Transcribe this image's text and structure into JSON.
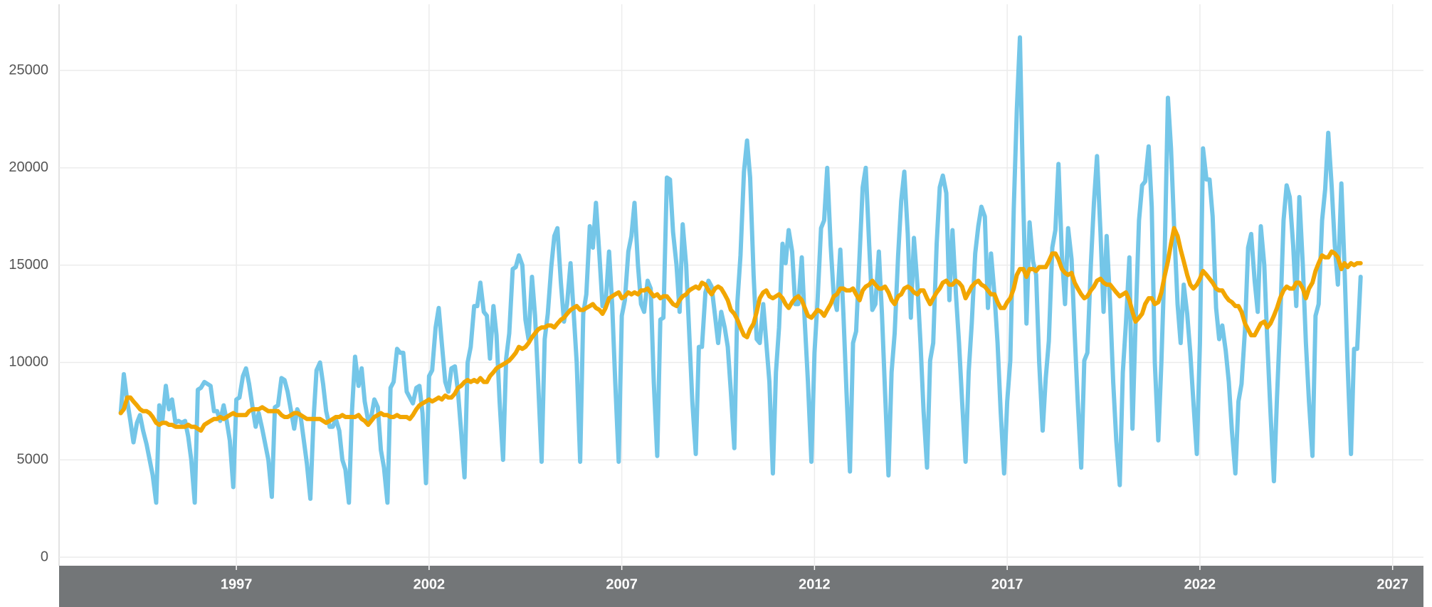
{
  "chart_data": {
    "type": "line",
    "x": [
      1994,
      1994.08,
      1994.17,
      1994.25,
      1994.33,
      1994.42,
      1994.5,
      1994.58,
      1994.67,
      1994.75,
      1994.83,
      1994.92,
      1995,
      1995.08,
      1995.17,
      1995.25,
      1995.33,
      1995.42,
      1995.5,
      1995.58,
      1995.67,
      1995.75,
      1995.83,
      1995.92,
      1996,
      1996.08,
      1996.17,
      1996.25,
      1996.33,
      1996.42,
      1996.5,
      1996.58,
      1996.67,
      1996.75,
      1996.83,
      1996.92,
      1997,
      1997.08,
      1997.17,
      1997.25,
      1997.33,
      1997.42,
      1997.5,
      1997.58,
      1997.67,
      1997.75,
      1997.83,
      1997.92,
      1998,
      1998.08,
      1998.17,
      1998.25,
      1998.33,
      1998.42,
      1998.5,
      1998.58,
      1998.67,
      1998.75,
      1998.83,
      1998.92,
      1999,
      1999.08,
      1999.17,
      1999.25,
      1999.33,
      1999.42,
      1999.5,
      1999.58,
      1999.67,
      1999.75,
      1999.83,
      1999.92,
      2000,
      2000.08,
      2000.17,
      2000.25,
      2000.33,
      2000.42,
      2000.5,
      2000.58,
      2000.67,
      2000.75,
      2000.83,
      2000.92,
      2001,
      2001.08,
      2001.17,
      2001.25,
      2001.33,
      2001.42,
      2001.5,
      2001.58,
      2001.67,
      2001.75,
      2001.83,
      2001.92,
      2002,
      2002.08,
      2002.17,
      2002.25,
      2002.33,
      2002.42,
      2002.5,
      2002.58,
      2002.67,
      2002.75,
      2002.83,
      2002.92,
      2003,
      2003.08,
      2003.17,
      2003.25,
      2003.33,
      2003.42,
      2003.5,
      2003.58,
      2003.67,
      2003.75,
      2003.83,
      2003.92,
      2004,
      2004.08,
      2004.17,
      2004.25,
      2004.33,
      2004.42,
      2004.5,
      2004.58,
      2004.67,
      2004.75,
      2004.83,
      2004.92,
      2005,
      2005.08,
      2005.17,
      2005.25,
      2005.33,
      2005.42,
      2005.5,
      2005.58,
      2005.67,
      2005.75,
      2005.83,
      2005.92,
      2006,
      2006.08,
      2006.17,
      2006.25,
      2006.33,
      2006.42,
      2006.5,
      2006.58,
      2006.67,
      2006.75,
      2006.83,
      2006.92,
      2007,
      2007.08,
      2007.17,
      2007.25,
      2007.33,
      2007.42,
      2007.5,
      2007.58,
      2007.67,
      2007.75,
      2007.83,
      2007.92,
      2008,
      2008.08,
      2008.17,
      2008.25,
      2008.33,
      2008.42,
      2008.5,
      2008.58,
      2008.67,
      2008.75,
      2008.83,
      2008.92,
      2009,
      2009.08,
      2009.17,
      2009.25,
      2009.33,
      2009.42,
      2009.5,
      2009.58,
      2009.67,
      2009.75,
      2009.83,
      2009.92,
      2010,
      2010.08,
      2010.17,
      2010.25,
      2010.33,
      2010.42,
      2010.5,
      2010.58,
      2010.67,
      2010.75,
      2010.83,
      2010.92,
      2011,
      2011.08,
      2011.17,
      2011.25,
      2011.33,
      2011.42,
      2011.5,
      2011.58,
      2011.67,
      2011.75,
      2011.83,
      2011.92,
      2012,
      2012.08,
      2012.17,
      2012.25,
      2012.33,
      2012.42,
      2012.5,
      2012.58,
      2012.67,
      2012.75,
      2012.83,
      2012.92,
      2013,
      2013.08,
      2013.17,
      2013.25,
      2013.33,
      2013.42,
      2013.5,
      2013.58,
      2013.67,
      2013.75,
      2013.83,
      2013.92,
      2014,
      2014.08,
      2014.17,
      2014.25,
      2014.33,
      2014.42,
      2014.5,
      2014.58,
      2014.67,
      2014.75,
      2014.83,
      2014.92,
      2015,
      2015.08,
      2015.17,
      2015.25,
      2015.33,
      2015.42,
      2015.5,
      2015.58,
      2015.67,
      2015.75,
      2015.83,
      2015.92,
      2016,
      2016.08,
      2016.17,
      2016.25,
      2016.33,
      2016.42,
      2016.5,
      2016.58,
      2016.67,
      2016.75,
      2016.83,
      2016.92,
      2017,
      2017.08,
      2017.17,
      2017.25,
      2017.33,
      2017.42,
      2017.5,
      2017.58,
      2017.67,
      2017.75,
      2017.83,
      2017.92,
      2018,
      2018.08,
      2018.17,
      2018.25,
      2018.33,
      2018.42,
      2018.5,
      2018.58,
      2018.67,
      2018.75,
      2018.83,
      2018.92,
      2019,
      2019.08,
      2019.17,
      2019.25,
      2019.33,
      2019.42,
      2019.5,
      2019.58,
      2019.67,
      2019.75,
      2019.83,
      2019.92,
      2020,
      2020.08,
      2020.17,
      2020.25,
      2020.33,
      2020.42,
      2020.5,
      2020.58,
      2020.67,
      2020.75,
      2020.83,
      2020.92,
      2021,
      2021.08,
      2021.17,
      2021.25,
      2021.33,
      2021.42,
      2021.5,
      2021.58,
      2021.67,
      2021.75,
      2021.83,
      2021.92,
      2022,
      2022.08,
      2022.17,
      2022.25,
      2022.33,
      2022.42,
      2022.5,
      2022.58,
      2022.67,
      2022.75,
      2022.83,
      2022.92,
      2023,
      2023.08,
      2023.17,
      2023.25,
      2023.33,
      2023.42,
      2023.5,
      2023.58,
      2023.67,
      2023.75,
      2023.83,
      2023.92,
      2024,
      2024.08,
      2024.17,
      2024.25,
      2024.33,
      2024.42,
      2024.5,
      2024.58,
      2024.67,
      2024.75,
      2024.83,
      2024.92,
      2025,
      2025.08,
      2025.17,
      2025.25,
      2025.33,
      2025.42,
      2025.5,
      2025.58,
      2025.67,
      2025.75,
      2025.83,
      2025.92,
      2026,
      2026.08,
      2026.17
    ],
    "series": [
      {
        "color": "#74c6e8",
        "values": [
          7400,
          9400,
          8000,
          7000,
          5900,
          6900,
          7300,
          6500,
          5800,
          5000,
          4200,
          2800,
          7800,
          7000,
          8800,
          7600,
          8100,
          6900,
          7000,
          6900,
          7000,
          6200,
          5000,
          2800,
          8600,
          8700,
          9000,
          8900,
          8800,
          7500,
          7500,
          7000,
          7800,
          7000,
          6000,
          3600,
          8100,
          8200,
          9300,
          9700,
          8900,
          7700,
          6700,
          7400,
          6600,
          5800,
          5000,
          3100,
          7700,
          7800,
          9200,
          9100,
          8500,
          7500,
          6600,
          7600,
          7200,
          6000,
          4800,
          3000,
          7000,
          9600,
          10000,
          8900,
          7500,
          6700,
          6700,
          7100,
          6500,
          5000,
          4500,
          2800,
          7500,
          10300,
          8800,
          9700,
          8000,
          7000,
          7200,
          8100,
          7700,
          5500,
          4600,
          2800,
          8700,
          9000,
          10700,
          10500,
          10500,
          8500,
          8200,
          7900,
          8700,
          8800,
          7400,
          3800,
          9300,
          9600,
          11800,
          12800,
          11000,
          9000,
          8500,
          9700,
          9800,
          8500,
          6500,
          4100,
          10000,
          10800,
          12900,
          12900,
          14100,
          12600,
          12400,
          10200,
          12900,
          11400,
          8000,
          5000,
          10200,
          11500,
          14800,
          14900,
          15500,
          15000,
          12200,
          11200,
          14400,
          12400,
          9000,
          4900,
          11200,
          12500,
          14900,
          16500,
          16900,
          14100,
          12100,
          13000,
          15100,
          12600,
          10000,
          4900,
          12500,
          13500,
          17000,
          15900,
          18200,
          15500,
          12900,
          13000,
          15700,
          13000,
          9000,
          4900,
          12400,
          13200,
          15700,
          16500,
          18200,
          15000,
          13000,
          12600,
          14200,
          13800,
          9000,
          5200,
          12200,
          12300,
          19500,
          19400,
          16700,
          15000,
          12600,
          17100,
          15000,
          11500,
          8000,
          5300,
          10800,
          10800,
          13600,
          14200,
          13900,
          12400,
          11000,
          12600,
          11800,
          10800,
          8500,
          5600,
          13100,
          15500,
          19800,
          21400,
          19500,
          14500,
          11200,
          11000,
          13000,
          11000,
          9000,
          4300,
          9500,
          11800,
          16100,
          15100,
          16800,
          15700,
          13000,
          13000,
          15400,
          12000,
          9000,
          4900,
          10500,
          13200,
          16900,
          17300,
          20000,
          16000,
          13400,
          12700,
          15800,
          12500,
          8500,
          4400,
          11000,
          11600,
          15500,
          19000,
          20000,
          16000,
          12700,
          13000,
          15700,
          12500,
          8500,
          4200,
          9500,
          11500,
          15500,
          18300,
          19800,
          16600,
          12300,
          16400,
          14000,
          11000,
          7500,
          4600,
          10100,
          11000,
          16100,
          19000,
          19600,
          18700,
          13200,
          16800,
          13500,
          11000,
          8000,
          4900,
          9500,
          12000,
          15600,
          17000,
          18000,
          17500,
          12800,
          15600,
          13500,
          11000,
          7500,
          4300,
          8000,
          10100,
          17900,
          23000,
          26700,
          18000,
          12000,
          17200,
          15200,
          14500,
          10000,
          6500,
          9200,
          11100,
          15900,
          16800,
          20200,
          15500,
          13000,
          16900,
          15300,
          11500,
          8000,
          4600,
          10100,
          10500,
          15000,
          18200,
          20600,
          16700,
          12600,
          16500,
          13000,
          9000,
          6000,
          3700,
          9500,
          12000,
          15400,
          6600,
          12000,
          17300,
          19100,
          19300,
          21100,
          18000,
          10000,
          6000,
          10000,
          15000,
          23600,
          21000,
          17000,
          13000,
          11000,
          14000,
          12500,
          10500,
          8000,
          5300,
          11000,
          21000,
          19400,
          19400,
          17500,
          12800,
          11200,
          11900,
          10600,
          9000,
          6500,
          4300,
          8000,
          8900,
          11700,
          15900,
          16600,
          14200,
          12600,
          17000,
          15000,
          11000,
          7500,
          3900,
          8200,
          12000,
          17300,
          19100,
          18500,
          16000,
          12900,
          18500,
          15000,
          11000,
          8000,
          5200,
          12400,
          13000,
          17300,
          18900,
          21800,
          19000,
          16000,
          14000,
          19200,
          15000,
          10000,
          5300,
          10700,
          10700,
          14400
        ]
      },
      {
        "color": "#f2a600",
        "values": [
          7400,
          7600,
          8200,
          8200,
          8000,
          7800,
          7600,
          7500,
          7500,
          7400,
          7200,
          6900,
          6800,
          6900,
          6900,
          6800,
          6800,
          6700,
          6700,
          6700,
          6700,
          6800,
          6700,
          6700,
          6600,
          6500,
          6800,
          6900,
          7000,
          7100,
          7100,
          7200,
          7100,
          7200,
          7300,
          7400,
          7300,
          7300,
          7300,
          7300,
          7500,
          7600,
          7600,
          7600,
          7700,
          7600,
          7500,
          7500,
          7500,
          7500,
          7300,
          7200,
          7200,
          7300,
          7400,
          7400,
          7300,
          7200,
          7100,
          7100,
          7100,
          7100,
          7100,
          7000,
          6900,
          7000,
          7100,
          7200,
          7200,
          7300,
          7200,
          7200,
          7200,
          7200,
          7300,
          7100,
          7000,
          6800,
          7000,
          7200,
          7300,
          7400,
          7300,
          7300,
          7200,
          7200,
          7300,
          7200,
          7200,
          7200,
          7100,
          7300,
          7600,
          7800,
          7900,
          8000,
          8100,
          8000,
          8100,
          8200,
          8100,
          8300,
          8200,
          8200,
          8400,
          8700,
          8800,
          9000,
          9100,
          9000,
          9100,
          9000,
          9200,
          9000,
          9000,
          9300,
          9500,
          9700,
          9800,
          9900,
          10000,
          10100,
          10300,
          10500,
          10800,
          10700,
          10800,
          11000,
          11300,
          11500,
          11700,
          11800,
          11800,
          11900,
          11900,
          11800,
          12000,
          12200,
          12300,
          12500,
          12700,
          12800,
          12900,
          12700,
          12700,
          12800,
          12900,
          13000,
          12800,
          12700,
          12500,
          12800,
          13300,
          13400,
          13500,
          13600,
          13300,
          13400,
          13600,
          13500,
          13600,
          13500,
          13700,
          13700,
          13800,
          13600,
          13400,
          13500,
          13300,
          13400,
          13400,
          13200,
          13000,
          12900,
          13200,
          13400,
          13500,
          13700,
          13800,
          13900,
          13800,
          14100,
          14000,
          13700,
          13500,
          13800,
          13900,
          13800,
          13500,
          13200,
          12700,
          12500,
          12200,
          11800,
          11400,
          11300,
          11700,
          12000,
          12600,
          13300,
          13600,
          13700,
          13400,
          13300,
          13400,
          13500,
          13300,
          13000,
          12800,
          13100,
          13300,
          13400,
          13200,
          12800,
          12400,
          12300,
          12500,
          12700,
          12600,
          12400,
          12700,
          13000,
          13400,
          13500,
          13800,
          13800,
          13700,
          13700,
          13800,
          13500,
          13200,
          13700,
          13900,
          14000,
          14200,
          14000,
          13800,
          13800,
          13900,
          13600,
          13200,
          13000,
          13400,
          13500,
          13800,
          13900,
          13800,
          13600,
          13500,
          13700,
          13700,
          13300,
          13000,
          13300,
          13600,
          13800,
          14100,
          14200,
          14000,
          14000,
          14200,
          14100,
          13900,
          13300,
          13600,
          13900,
          14100,
          14200,
          14000,
          13900,
          13700,
          13500,
          13500,
          13100,
          12800,
          12800,
          13100,
          13300,
          13800,
          14500,
          14800,
          14800,
          14400,
          14800,
          14800,
          14700,
          14900,
          14900,
          14900,
          15200,
          15600,
          15600,
          15300,
          14800,
          14600,
          14500,
          14600,
          14100,
          13800,
          13500,
          13300,
          13400,
          13700,
          13900,
          14200,
          14300,
          14100,
          14000,
          14000,
          13800,
          13600,
          13400,
          13500,
          13600,
          13200,
          12600,
          12100,
          12300,
          12500,
          13000,
          13300,
          13300,
          13000,
          13100,
          13600,
          14400,
          15200,
          16100,
          16900,
          16500,
          15800,
          15200,
          14500,
          14000,
          13800,
          14000,
          14300,
          14700,
          14500,
          14300,
          14100,
          13800,
          13700,
          13700,
          13400,
          13200,
          13100,
          12900,
          12900,
          12600,
          12000,
          11700,
          11400,
          11400,
          11700,
          12000,
          12100,
          11800,
          12000,
          12400,
          12800,
          13300,
          13700,
          13900,
          13800,
          13800,
          14100,
          14100,
          13800,
          13300,
          13800,
          14100,
          14700,
          15100,
          15500,
          15400,
          15400,
          15700,
          15600,
          15400,
          14800,
          15100,
          14900,
          15100,
          15000,
          15100,
          15100
        ]
      }
    ],
    "xlim": [
      1992.4,
      2027.8
    ],
    "xticks": [
      1997,
      2002,
      2007,
      2012,
      2017,
      2022,
      2027
    ],
    "ylim": [
      0,
      28400
    ],
    "yticks": [
      0,
      5000,
      10000,
      15000,
      20000,
      25000
    ],
    "grid": true
  }
}
